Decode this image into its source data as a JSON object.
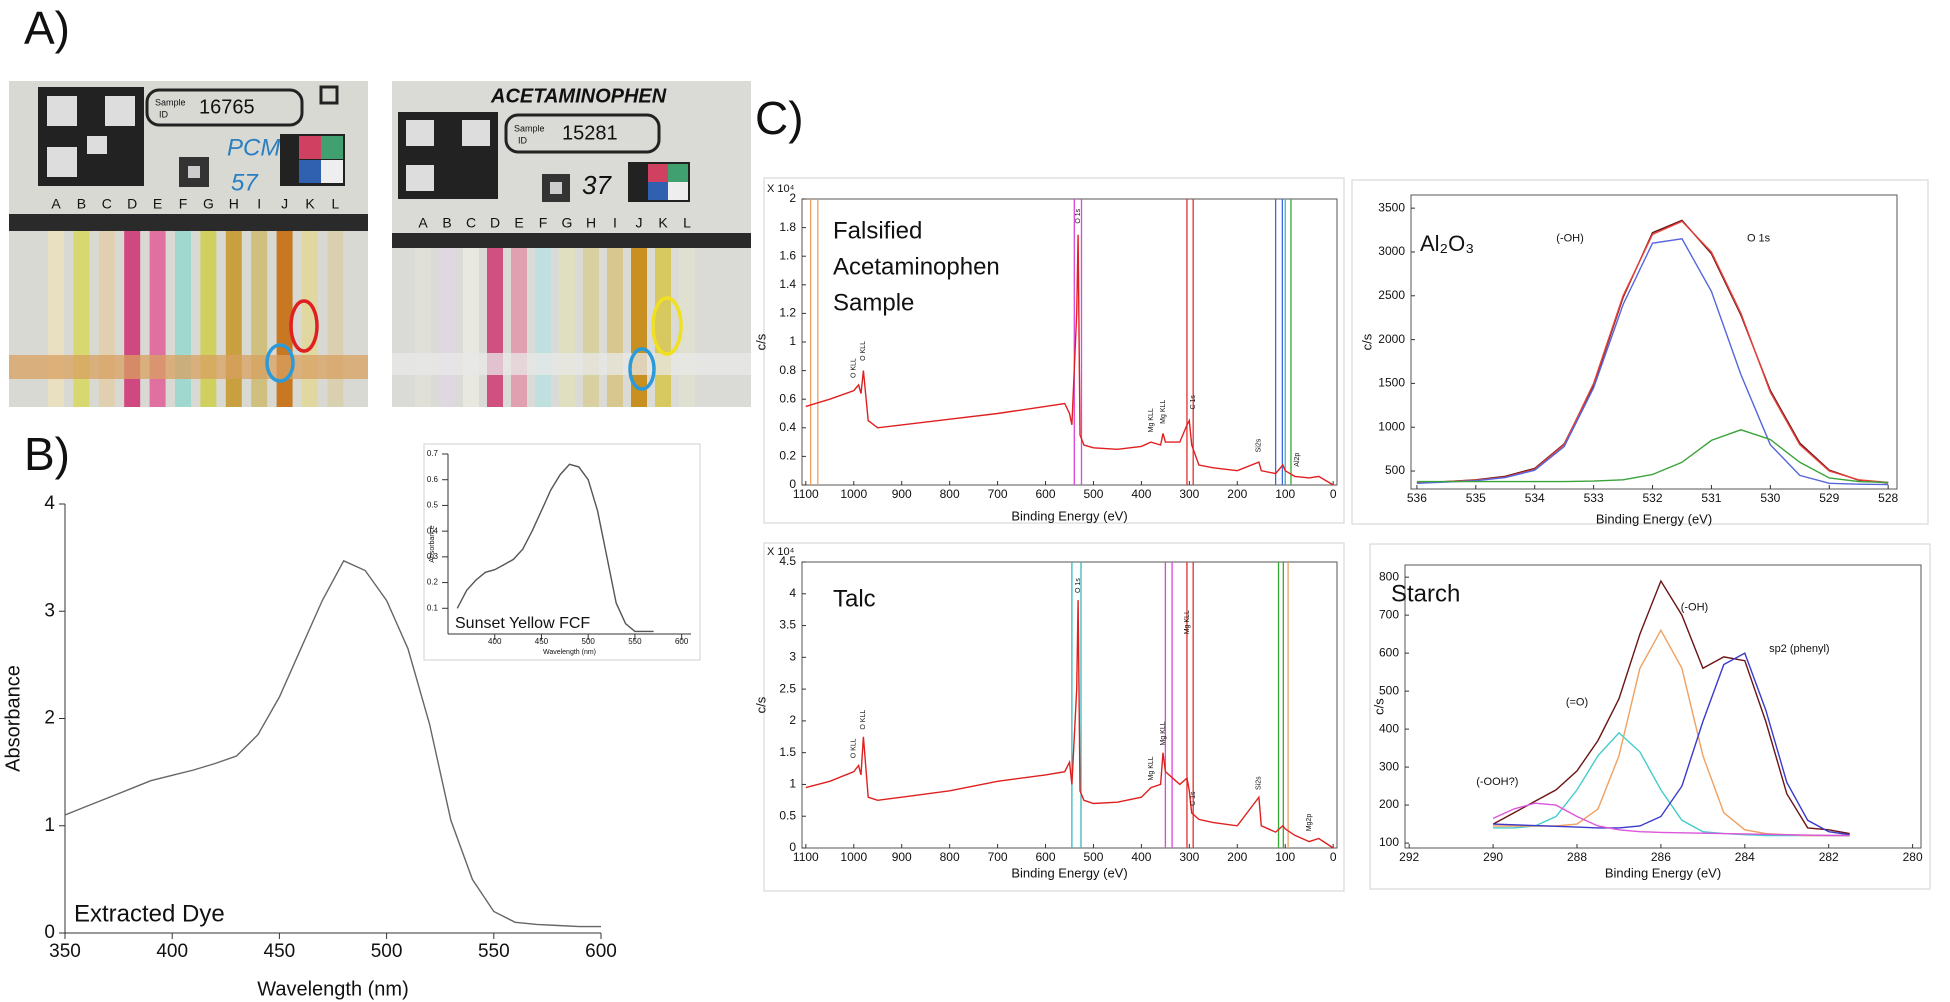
{
  "panel_labels": [
    "A)",
    "B)",
    "C)"
  ],
  "photos": [
    {
      "sample_label": [
        "Sample",
        "ID"
      ],
      "sample_id": "16765",
      "notes": [
        "PCM",
        "57"
      ],
      "lanes": [
        "A",
        "B",
        "C",
        "D",
        "E",
        "F",
        "G",
        "H",
        "I",
        "J",
        "K",
        "L"
      ]
    },
    {
      "header": "ACETAMINOPHEN",
      "sample_label": [
        "Sample",
        "ID"
      ],
      "sample_id": "15281",
      "notes": [
        "37"
      ],
      "lanes": [
        "A",
        "B",
        "C",
        "D",
        "E",
        "F",
        "G",
        "H",
        "I",
        "J",
        "K",
        "L"
      ]
    }
  ],
  "chart_data": [
    {
      "type": "line",
      "xlabel": "Wavelength (nm)",
      "ylabel": "Absorbance",
      "annotation": [
        "Extracted Dye"
      ],
      "x": [
        350,
        360,
        370,
        380,
        390,
        400,
        410,
        420,
        430,
        440,
        450,
        460,
        470,
        480,
        490,
        500,
        510,
        520,
        530,
        540,
        550,
        560,
        570,
        580,
        590,
        600
      ],
      "series": [
        {
          "color": "#666666",
          "values": [
            1.1,
            1.18,
            1.26,
            1.34,
            1.42,
            1.47,
            1.52,
            1.58,
            1.65,
            1.85,
            2.2,
            2.65,
            3.1,
            3.47,
            3.38,
            3.1,
            2.65,
            1.95,
            1.05,
            0.5,
            0.2,
            0.1,
            0.08,
            0.07,
            0.06,
            0.06
          ]
        }
      ],
      "xlim": [
        350,
        600
      ],
      "ylim": [
        0,
        4
      ],
      "xticks": [
        350,
        400,
        450,
        500,
        550,
        600
      ],
      "yticks": [
        0,
        1,
        2,
        3,
        4
      ]
    },
    {
      "type": "line",
      "xlabel": "Wavelength (nm)",
      "ylabel": "Absorbance",
      "annotation": [
        "Sunset Yellow FCF"
      ],
      "x": [
        360,
        370,
        380,
        390,
        400,
        410,
        420,
        430,
        440,
        450,
        460,
        470,
        480,
        490,
        500,
        510,
        520,
        530,
        540,
        550,
        560,
        570
      ],
      "series": [
        {
          "color": "#555555",
          "values": [
            0.1,
            0.17,
            0.21,
            0.24,
            0.25,
            0.27,
            0.29,
            0.33,
            0.4,
            0.48,
            0.56,
            0.62,
            0.66,
            0.65,
            0.6,
            0.48,
            0.3,
            0.12,
            0.04,
            0.01,
            0.01,
            0.01
          ]
        }
      ],
      "xlim": [
        350,
        610
      ],
      "ylim": [
        0,
        0.7
      ],
      "xticks": [
        400,
        450,
        500,
        550,
        600
      ],
      "yticks": [
        0.1,
        0.2,
        0.3,
        0.4,
        0.5,
        0.6,
        0.7
      ]
    },
    {
      "type": "line",
      "xlabel": "Binding Energy (eV)",
      "ylabel": "c/s",
      "y_multiplier": "X 10⁴",
      "annotation": [
        "Falsified",
        "Acetaminophen",
        "Sample"
      ],
      "x": [
        1100,
        1050,
        1000,
        990,
        985,
        980,
        970,
        950,
        900,
        800,
        700,
        600,
        560,
        550,
        545,
        535,
        532,
        528,
        520,
        500,
        450,
        400,
        380,
        360,
        355,
        350,
        320,
        305,
        300,
        295,
        280,
        250,
        200,
        155,
        150,
        120,
        105,
        100,
        80,
        50,
        30,
        0
      ],
      "series": [
        {
          "color": "#e02020",
          "values": [
            0.55,
            0.6,
            0.66,
            0.7,
            0.64,
            0.8,
            0.45,
            0.4,
            0.42,
            0.46,
            0.5,
            0.55,
            0.57,
            0.5,
            0.42,
            1.2,
            1.75,
            0.35,
            0.28,
            0.26,
            0.25,
            0.27,
            0.3,
            0.28,
            0.36,
            0.3,
            0.3,
            0.42,
            0.45,
            0.28,
            0.14,
            0.12,
            0.1,
            0.16,
            0.1,
            0.08,
            0.14,
            0.1,
            0.06,
            0.05,
            0.06,
            0
          ]
        }
      ],
      "markers": [
        {
          "x": 1090,
          "color": "#f0a060"
        },
        {
          "x": 1075,
          "color": "#f0a060"
        },
        {
          "x": 540,
          "color": "#dd44dd"
        },
        {
          "x": 525,
          "color": "#dd44dd"
        },
        {
          "x": 305,
          "color": "#e03030"
        },
        {
          "x": 292,
          "color": "#e03030"
        },
        {
          "x": 120,
          "color": "#4466dd"
        },
        {
          "x": 106,
          "color": "#4466dd"
        },
        {
          "x": 100,
          "color": "#33bbbb"
        },
        {
          "x": 88,
          "color": "#33aa33"
        }
      ],
      "peak_labels": [
        {
          "text": "O KLL",
          "x": 1000,
          "y": 0.72
        },
        {
          "text": "O KLL",
          "x": 980,
          "y": 0.84
        },
        {
          "text": "O 1s",
          "x": 532,
          "y": 1.8
        },
        {
          "text": "Mg KLL",
          "x": 380,
          "y": 0.34
        },
        {
          "text": "Mg KLL",
          "x": 355,
          "y": 0.4
        },
        {
          "text": "C 1s",
          "x": 292,
          "y": 0.5
        },
        {
          "text": "Si2s",
          "x": 155,
          "y": 0.2
        },
        {
          "text": "Al2p",
          "x": 75,
          "y": 0.1
        }
      ],
      "xlim": [
        1108,
        -8
      ],
      "ylim": [
        0,
        2
      ],
      "xticks": [
        1100,
        1000,
        900,
        800,
        700,
        600,
        500,
        400,
        300,
        200,
        100,
        0
      ],
      "yticks": [
        0,
        0.2,
        0.4,
        0.6,
        0.8,
        1,
        1.2,
        1.4,
        1.6,
        1.8,
        2
      ]
    },
    {
      "type": "line",
      "xlabel": "Binding Energy (eV)",
      "ylabel": "c/s",
      "annotation": [
        "Al₂O₃"
      ],
      "x": [
        536,
        535.5,
        535,
        534.5,
        534,
        533.5,
        533,
        532.5,
        532,
        531.5,
        531,
        530.5,
        530,
        529.5,
        529,
        528.5,
        528
      ],
      "series": [
        {
          "color": "#6b1414",
          "values": [
            365,
            380,
            400,
            440,
            530,
            810,
            1480,
            2480,
            3220,
            3360,
            2980,
            2280,
            1420,
            820,
            510,
            395,
            365
          ]
        },
        {
          "color": "#e8413a",
          "values": [
            370,
            380,
            395,
            430,
            520,
            800,
            1500,
            2500,
            3200,
            3350,
            3000,
            2300,
            1400,
            800,
            500,
            400,
            370
          ]
        },
        {
          "color": "#5566dd",
          "values": [
            360,
            375,
            390,
            425,
            510,
            780,
            1450,
            2400,
            3100,
            3150,
            2550,
            1600,
            800,
            450,
            360,
            350,
            345
          ]
        },
        {
          "color": "#3aa33a",
          "values": [
            380,
            380,
            380,
            380,
            380,
            380,
            385,
            400,
            460,
            600,
            850,
            970,
            860,
            600,
            420,
            380,
            370
          ]
        }
      ],
      "annotations": [
        {
          "text": "(-OH)",
          "x": 533.4,
          "y": 3150
        },
        {
          "text": "O 1s",
          "x": 530.2,
          "y": 3150
        }
      ],
      "xlim": [
        536.1,
        527.85
      ],
      "ylim": [
        295,
        3650
      ],
      "xticks": [
        536,
        535,
        534,
        533,
        532,
        531,
        530,
        529,
        528
      ],
      "yticks": [
        500,
        1000,
        1500,
        2000,
        2500,
        3000,
        3500
      ]
    },
    {
      "type": "line",
      "xlabel": "Binding Energy (eV)",
      "ylabel": "c/s",
      "y_multiplier": "X 10⁴",
      "annotation": [
        "Talc"
      ],
      "x": [
        1100,
        1050,
        1000,
        990,
        985,
        980,
        970,
        950,
        900,
        800,
        700,
        600,
        560,
        550,
        545,
        535,
        532,
        528,
        520,
        500,
        450,
        400,
        380,
        360,
        355,
        350,
        320,
        305,
        300,
        295,
        280,
        250,
        200,
        155,
        150,
        120,
        105,
        100,
        80,
        50,
        30,
        0
      ],
      "series": [
        {
          "color": "#e02020",
          "values": [
            0.95,
            1.05,
            1.2,
            1.3,
            1.15,
            1.75,
            0.8,
            0.75,
            0.8,
            0.9,
            1.05,
            1.15,
            1.2,
            1.35,
            1.0,
            2.5,
            3.9,
            0.9,
            0.75,
            0.7,
            0.72,
            0.8,
            0.95,
            1.0,
            1.5,
            1.2,
            1.0,
            1.1,
            0.9,
            0.55,
            0.45,
            0.4,
            0.35,
            0.8,
            0.35,
            0.25,
            0.35,
            0.3,
            0.2,
            0.1,
            0.15,
            0
          ]
        }
      ],
      "markers": [
        {
          "x": 545,
          "color": "#33bbbb"
        },
        {
          "x": 526,
          "color": "#33bbbb"
        },
        {
          "x": 350,
          "color": "#dd44dd"
        },
        {
          "x": 336,
          "color": "#dd44dd"
        },
        {
          "x": 305,
          "color": "#e03030"
        },
        {
          "x": 292,
          "color": "#e03030"
        },
        {
          "x": 114,
          "color": "#33aa33"
        },
        {
          "x": 104,
          "color": "#33aa33"
        },
        {
          "x": 94,
          "color": "#f0a060"
        }
      ],
      "peak_labels": [
        {
          "text": "O KLL",
          "x": 1000,
          "y": 1.35
        },
        {
          "text": "O KLL",
          "x": 980,
          "y": 1.8
        },
        {
          "text": "O 1s",
          "x": 532,
          "y": 3.95
        },
        {
          "text": "Mg KLL",
          "x": 380,
          "y": 1.0
        },
        {
          "text": "Mg KLL",
          "x": 355,
          "y": 1.55
        },
        {
          "text": "Mg KLL",
          "x": 305,
          "y": 3.3
        },
        {
          "text": "C 1s",
          "x": 292,
          "y": 0.6
        },
        {
          "text": "Si2s",
          "x": 155,
          "y": 0.85
        },
        {
          "text": "Mg2p",
          "x": 50,
          "y": 0.2
        }
      ],
      "xlim": [
        1108,
        -8
      ],
      "ylim": [
        0,
        4.5
      ],
      "xticks": [
        1100,
        1000,
        900,
        800,
        700,
        600,
        500,
        400,
        300,
        200,
        100,
        0
      ],
      "yticks": [
        0,
        0.5,
        1,
        1.5,
        2,
        2.5,
        3,
        3.5,
        4,
        4.5
      ]
    },
    {
      "type": "line",
      "xlabel": "Binding Energy (eV)",
      "ylabel": "c/s",
      "annotation": [
        "Starch"
      ],
      "x": [
        290,
        289.5,
        289,
        288.5,
        288,
        287.5,
        287,
        286.5,
        286,
        285.5,
        285,
        284.5,
        284,
        283.5,
        283,
        282.5,
        282,
        281.5
      ],
      "series": [
        {
          "color": "#6b1414",
          "values": [
            150,
            180,
            210,
            240,
            290,
            370,
            480,
            650,
            790,
            700,
            560,
            590,
            580,
            420,
            230,
            140,
            135,
            125
          ]
        },
        {
          "color": "#44cccc",
          "values": [
            140,
            140,
            145,
            170,
            240,
            330,
            390,
            340,
            240,
            160,
            130,
            125,
            122,
            120,
            120,
            120,
            120,
            120
          ]
        },
        {
          "color": "#f0a060",
          "values": [
            145,
            145,
            145,
            145,
            150,
            190,
            330,
            560,
            660,
            560,
            330,
            180,
            135,
            125,
            122,
            120,
            120,
            120
          ]
        },
        {
          "color": "#3a3acc",
          "values": [
            150,
            148,
            146,
            144,
            142,
            140,
            140,
            145,
            170,
            250,
            420,
            570,
            600,
            450,
            260,
            160,
            130,
            122
          ]
        },
        {
          "color": "#dd55dd",
          "values": [
            165,
            190,
            205,
            200,
            170,
            145,
            135,
            130,
            128,
            127,
            126,
            125,
            124,
            123,
            122,
            121,
            120,
            120
          ]
        }
      ],
      "annotations": [
        {
          "text": "(-OH)",
          "x": 285.2,
          "y": 720
        },
        {
          "text": "(=O)",
          "x": 288,
          "y": 470
        },
        {
          "text": "(-OOH?)",
          "x": 289.9,
          "y": 260
        },
        {
          "text": "sp2 (phenyl)",
          "x": 282.7,
          "y": 610
        }
      ],
      "xlim": [
        292.1,
        279.8
      ],
      "ylim": [
        87,
        832
      ],
      "xticks": [
        292,
        290,
        288,
        286,
        284,
        282,
        280
      ],
      "yticks": [
        100,
        200,
        300,
        400,
        500,
        600,
        700,
        800
      ]
    }
  ]
}
